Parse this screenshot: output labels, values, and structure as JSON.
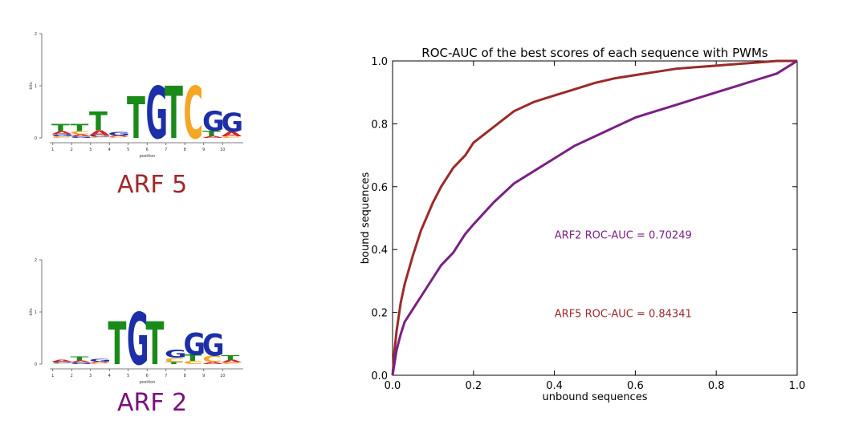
{
  "logos": [
    {
      "label": "ARF 5",
      "label_color": "#a0292a",
      "ylabel": "bits",
      "xlabel": "position",
      "yticks": [
        "0",
        "1",
        "2"
      ],
      "positions": [
        "1",
        "2",
        "3",
        "4",
        "5",
        "6",
        "7",
        "8",
        "9",
        "10"
      ],
      "columns": [
        [
          [
            "T",
            0.14
          ],
          [
            "A",
            0.06
          ],
          [
            "G",
            0.04
          ],
          [
            "C",
            0.03
          ]
        ],
        [
          [
            "T",
            0.14
          ],
          [
            "C",
            0.06
          ],
          [
            "A",
            0.04
          ],
          [
            "G",
            0.03
          ]
        ],
        [
          [
            "T",
            0.36
          ],
          [
            "A",
            0.1
          ],
          [
            "G",
            0.03
          ],
          [
            "C",
            0.02
          ]
        ],
        [
          [
            "G",
            0.07
          ],
          [
            "A",
            0.03
          ],
          [
            "C",
            0.02
          ]
        ],
        [
          [
            "T",
            0.8
          ]
        ],
        [
          [
            "G",
            1.0
          ]
        ],
        [
          [
            "T",
            1.0
          ]
        ],
        [
          [
            "C",
            1.0
          ]
        ],
        [
          [
            "G",
            0.38
          ],
          [
            "T",
            0.1
          ],
          [
            "A",
            0.04
          ]
        ],
        [
          [
            "G",
            0.36
          ],
          [
            "A",
            0.09
          ],
          [
            "C",
            0.03
          ]
        ]
      ]
    },
    {
      "label": "ARF 2",
      "label_color": "#7a0f7a",
      "ylabel": "bits",
      "xlabel": "position",
      "yticks": [
        "0",
        "1",
        "2"
      ],
      "positions": [
        "1",
        "2",
        "3",
        "4",
        "5",
        "6",
        "7",
        "8",
        "9",
        "10"
      ],
      "columns": [
        [
          [
            "A",
            0.04
          ],
          [
            "G",
            0.03
          ],
          [
            "C",
            0.02
          ]
        ],
        [
          [
            "T",
            0.08
          ],
          [
            "A",
            0.04
          ],
          [
            "G",
            0.03
          ]
        ],
        [
          [
            "G",
            0.05
          ],
          [
            "A",
            0.03
          ],
          [
            "C",
            0.02
          ]
        ],
        [
          [
            "T",
            0.82
          ]
        ],
        [
          [
            "G",
            1.0
          ]
        ],
        [
          [
            "T",
            0.82
          ]
        ],
        [
          [
            "G",
            0.15
          ],
          [
            "C",
            0.08
          ],
          [
            "T",
            0.04
          ]
        ],
        [
          [
            "G",
            0.42
          ],
          [
            "T",
            0.12
          ],
          [
            "C",
            0.06
          ]
        ],
        [
          [
            "G",
            0.42
          ],
          [
            "C",
            0.12
          ],
          [
            "A",
            0.04
          ]
        ],
        [
          [
            "T",
            0.09
          ],
          [
            "A",
            0.05
          ],
          [
            "C",
            0.03
          ]
        ]
      ]
    }
  ],
  "logo_colors": {
    "A": "#d62728",
    "C": "#f5a623",
    "G": "#1c2fa8",
    "T": "#1a8a1a"
  },
  "chart_data": {
    "type": "line",
    "title": "ROC-AUC of the best scores of each sequence with PWMs",
    "xlabel": "unbound sequences",
    "ylabel": "bound sequences",
    "xlim": [
      0.0,
      1.0
    ],
    "ylim": [
      0.0,
      1.0
    ],
    "xticks": [
      "0.0",
      "0.2",
      "0.4",
      "0.6",
      "0.8",
      "1.0"
    ],
    "yticks": [
      "0.0",
      "0.2",
      "0.4",
      "0.6",
      "0.8",
      "1.0"
    ],
    "grid": false,
    "series": [
      {
        "color": "#9b2a2a",
        "x": [
          0,
          0.005,
          0.01,
          0.02,
          0.03,
          0.05,
          0.07,
          0.1,
          0.12,
          0.15,
          0.18,
          0.2,
          0.25,
          0.3,
          0.35,
          0.4,
          0.45,
          0.5,
          0.55,
          0.6,
          0.65,
          0.7,
          0.75,
          0.8,
          0.85,
          0.9,
          0.95,
          1.0
        ],
        "y": [
          0,
          0.08,
          0.14,
          0.23,
          0.29,
          0.38,
          0.46,
          0.55,
          0.6,
          0.66,
          0.7,
          0.74,
          0.79,
          0.84,
          0.87,
          0.89,
          0.91,
          0.93,
          0.945,
          0.955,
          0.965,
          0.975,
          0.98,
          0.985,
          0.99,
          0.995,
          1.0,
          1.0
        ]
      },
      {
        "color": "#7b1f85",
        "x": [
          0,
          0.005,
          0.01,
          0.02,
          0.03,
          0.05,
          0.07,
          0.1,
          0.12,
          0.15,
          0.18,
          0.2,
          0.25,
          0.3,
          0.35,
          0.4,
          0.45,
          0.5,
          0.55,
          0.6,
          0.65,
          0.7,
          0.75,
          0.8,
          0.85,
          0.9,
          0.95,
          1.0
        ],
        "y": [
          0,
          0.04,
          0.08,
          0.13,
          0.17,
          0.21,
          0.25,
          0.31,
          0.35,
          0.39,
          0.45,
          0.48,
          0.55,
          0.61,
          0.65,
          0.69,
          0.73,
          0.76,
          0.79,
          0.82,
          0.84,
          0.86,
          0.88,
          0.9,
          0.92,
          0.94,
          0.96,
          1.0
        ]
      }
    ],
    "annotations": [
      {
        "text": "ARF2 ROC-AUC = 0.70249",
        "x": 0.57,
        "y": 0.445,
        "color": "#7b1f85"
      },
      {
        "text": "ARF5 ROC-AUC = 0.84341",
        "x": 0.57,
        "y": 0.195,
        "color": "#9b2a2a"
      }
    ]
  }
}
